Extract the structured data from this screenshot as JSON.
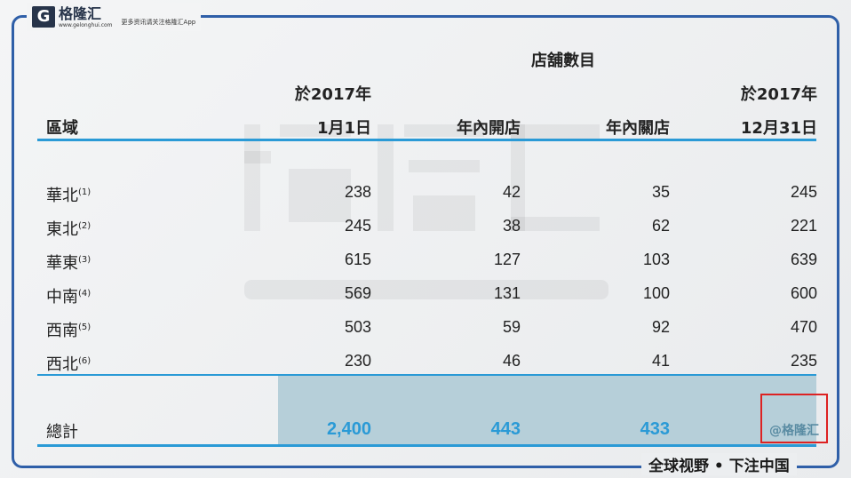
{
  "logo": {
    "name": "格隆汇",
    "url": "www.gelonghui.com",
    "tagline": "更多资讯请关注格隆汇App"
  },
  "slogan": "全球视野 • 下注中国",
  "watermark": {
    "main": "格隆汇",
    "url": "www.gelonghui.com",
    "corner": "@格隆汇"
  },
  "table": {
    "group_header": "店舖數目",
    "headers": {
      "region": "區域",
      "start_line1": "於2017年",
      "start_line2": "1月1日",
      "opened": "年內開店",
      "closed": "年內關店",
      "end_line1": "於2017年",
      "end_line2": "12月31日"
    },
    "rows": [
      {
        "region": "華北",
        "note": "(1)",
        "start": "238",
        "opened": "42",
        "closed": "35",
        "end": "245"
      },
      {
        "region": "東北",
        "note": "(2)",
        "start": "245",
        "opened": "38",
        "closed": "62",
        "end": "221"
      },
      {
        "region": "華東",
        "note": "(3)",
        "start": "615",
        "opened": "127",
        "closed": "103",
        "end": "639"
      },
      {
        "region": "中南",
        "note": "(4)",
        "start": "569",
        "opened": "131",
        "closed": "100",
        "end": "600"
      },
      {
        "region": "西南",
        "note": "(5)",
        "start": "503",
        "opened": "59",
        "closed": "92",
        "end": "470"
      },
      {
        "region": "西北",
        "note": "(6)",
        "start": "230",
        "opened": "46",
        "closed": "41",
        "end": "235"
      }
    ],
    "total": {
      "label": "總計",
      "start": "2,400",
      "opened": "443",
      "closed": "433"
    }
  }
}
